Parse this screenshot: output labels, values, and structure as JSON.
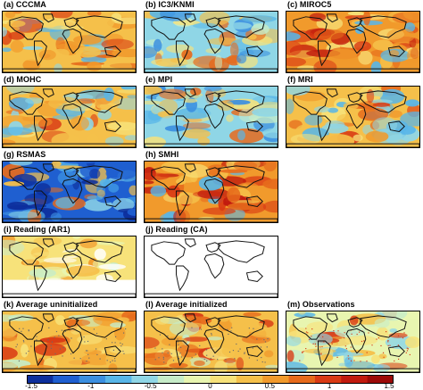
{
  "panels": [
    {
      "id": "a",
      "title": "(a) CCCMA",
      "style": "warm"
    },
    {
      "id": "b",
      "title": "(b) IC3/KNMI",
      "style": "mixed"
    },
    {
      "id": "c",
      "title": "(c) MIROC5",
      "style": "hot"
    },
    {
      "id": "d",
      "title": "(d) MOHC",
      "style": "warm"
    },
    {
      "id": "e",
      "title": "(e) MPI",
      "style": "mixed"
    },
    {
      "id": "f",
      "title": "(f) MRI",
      "style": "warm"
    },
    {
      "id": "g",
      "title": "(g) RSMAS",
      "style": "cool"
    },
    {
      "id": "h",
      "title": "(h) SMHI",
      "style": "hot"
    },
    {
      "id": "i",
      "title": "(i) Reading (AR1)",
      "style": "pale"
    },
    {
      "id": "j",
      "title": "(j) Reading (CA)",
      "style": "blank"
    },
    {
      "id": "k",
      "title": "(k) Average uninitialized",
      "style": "warm-dots"
    },
    {
      "id": "l",
      "title": "(l) Average initialized",
      "style": "warm-dots"
    },
    {
      "id": "m",
      "title": "(m) Observations",
      "style": "obs"
    }
  ],
  "colorbar": {
    "ticks": [
      "-1.5",
      "-1",
      "-0.5",
      "0",
      "0.5",
      "1",
      "1.5"
    ],
    "colors": [
      "#0d2f9c",
      "#1f5fd0",
      "#3b8fe0",
      "#58b6e8",
      "#8fd6e6",
      "#c6ecc8",
      "#e8f5b0",
      "#f7e27a",
      "#f5c04a",
      "#f19a2c",
      "#e66a1c",
      "#d93a14",
      "#c11a0e",
      "#9c0a08"
    ]
  }
}
